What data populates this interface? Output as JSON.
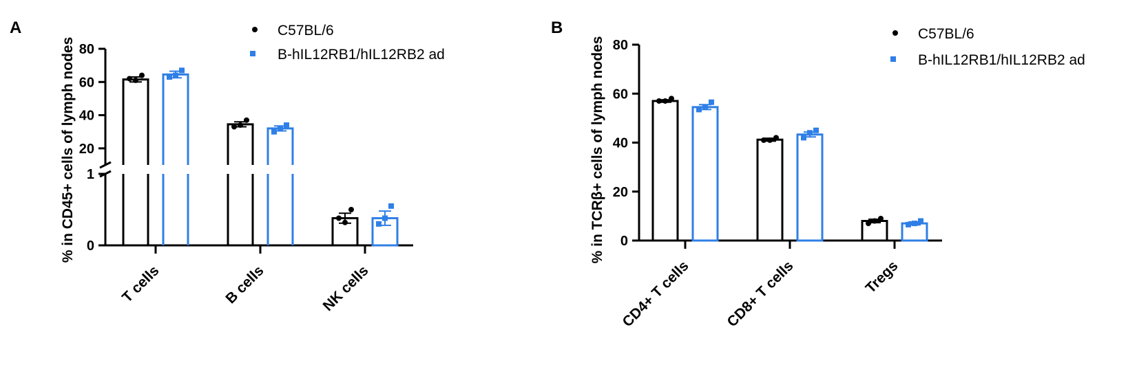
{
  "colors": {
    "series1": "#000000",
    "series2": "#2f7fe6"
  },
  "chart_data": [
    {
      "panel_label": "A",
      "type": "bar",
      "ylabel": "% in CD45+ cells of lymph nodes",
      "categories": [
        "T cells",
        "B cells",
        "NK cells"
      ],
      "broken_axis": {
        "lower": [
          0,
          1
        ],
        "upper": [
          10,
          80
        ],
        "lower_ticks": [
          "0",
          "1"
        ],
        "upper_ticks": [
          "20",
          "40",
          "60",
          "80"
        ]
      },
      "series": [
        {
          "name": "C57BL/6",
          "values": [
            61.5,
            34.5,
            0.38
          ],
          "errors": [
            1.5,
            1.5,
            0.07
          ],
          "points": [
            [
              62,
              61,
              64
            ],
            [
              33,
              34,
              37
            ],
            [
              0.38,
              0.32,
              0.5
            ]
          ]
        },
        {
          "name": "B-hIL12RB1/hIL12RB2 ad",
          "values": [
            64.5,
            32,
            0.38
          ],
          "errors": [
            2,
            1.5,
            0.1
          ],
          "points": [
            [
              63,
              64,
              67
            ],
            [
              30,
              32,
              34
            ],
            [
              0.3,
              0.38,
              0.55
            ]
          ]
        }
      ],
      "legend": "top-right"
    },
    {
      "panel_label": "B",
      "type": "bar",
      "ylabel": "% in TCRβ+ cells of lymph nodes",
      "categories": [
        "CD4+ T cells",
        "CD8+ T cells",
        "Tregs"
      ],
      "ylim": [
        0,
        80
      ],
      "yticks": [
        "0",
        "20",
        "40",
        "60",
        "80"
      ],
      "series": [
        {
          "name": "C57BL/6",
          "values": [
            57,
            41.2,
            8
          ],
          "errors": [
            0.5,
            0.6,
            0.7
          ],
          "points": [
            [
              57,
              57,
              58
            ],
            [
              41,
              41,
              42
            ],
            [
              7,
              8,
              9
            ]
          ]
        },
        {
          "name": "B-hIL12RB1/hIL12RB2 ad",
          "values": [
            54.5,
            43.3,
            7
          ],
          "errors": [
            1,
            1,
            0.6
          ],
          "points": [
            [
              53.5,
              54.5,
              56.5
            ],
            [
              42,
              44,
              45
            ],
            [
              6.5,
              7,
              8
            ]
          ]
        }
      ],
      "legend": "top-right"
    }
  ]
}
